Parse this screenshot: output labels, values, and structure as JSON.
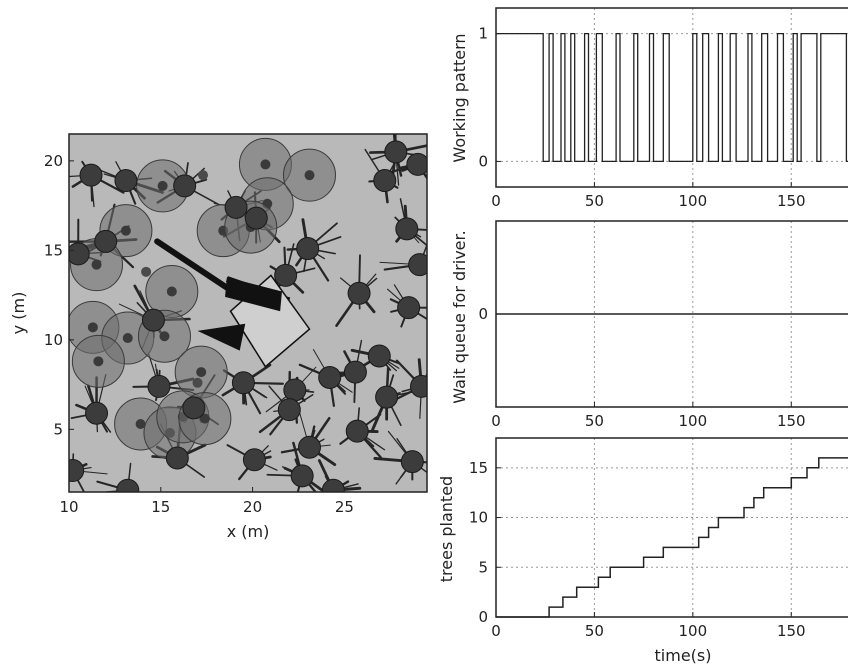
{
  "chart_data": [
    {
      "type": "scatter",
      "xlabel": "x (m)",
      "ylabel": "y (m)",
      "xlim": [
        10,
        29.5
      ],
      "ylim": [
        1.5,
        21.5
      ],
      "x_ticks": [
        "10",
        "15",
        "20",
        "25"
      ],
      "y_ticks": [
        "5",
        "10",
        "15",
        "20"
      ],
      "colors": {
        "background": "#b9b9b9",
        "tree": "#3c3c3c",
        "zone": "#6e6e6e",
        "seedling": "#4a4a4a",
        "machine": "#cfcfcf"
      },
      "trees": [
        [
          11.2,
          19.2
        ],
        [
          13.1,
          18.9
        ],
        [
          16.3,
          18.6
        ],
        [
          27.8,
          20.5
        ],
        [
          29,
          19.8
        ],
        [
          27.2,
          18.9
        ],
        [
          28.4,
          16.2
        ],
        [
          12,
          15.5
        ],
        [
          10.5,
          14.8
        ],
        [
          19.1,
          17.4
        ],
        [
          20.2,
          16.8
        ],
        [
          23,
          15.1
        ],
        [
          21.8,
          13.6
        ],
        [
          25.8,
          12.6
        ],
        [
          28.5,
          11.8
        ],
        [
          14.6,
          11.1
        ],
        [
          26.9,
          9.1
        ],
        [
          25.6,
          8.2
        ],
        [
          14.9,
          7.4
        ],
        [
          19.5,
          7.6
        ],
        [
          22.3,
          7.2
        ],
        [
          24.2,
          7.9
        ],
        [
          27.3,
          6.8
        ],
        [
          11.5,
          5.9
        ],
        [
          16.8,
          6.2
        ],
        [
          22,
          6.1
        ],
        [
          23.1,
          4
        ],
        [
          25.7,
          4.9
        ],
        [
          20.1,
          3.3
        ],
        [
          15.9,
          3.4
        ],
        [
          22.7,
          2.4
        ],
        [
          10.2,
          2.7
        ],
        [
          13.2,
          1.6
        ],
        [
          24.4,
          1.6
        ],
        [
          28.7,
          3.2
        ],
        [
          29.2,
          7.4
        ],
        [
          29.1,
          14.2
        ]
      ],
      "zones": [
        [
          20.7,
          19.8
        ],
        [
          23.1,
          19.2
        ],
        [
          15.1,
          18.6
        ],
        [
          20.8,
          17.6
        ],
        [
          13.1,
          16.1
        ],
        [
          18.4,
          16.1
        ],
        [
          19.9,
          16.3
        ],
        [
          11.5,
          14.2
        ],
        [
          15.6,
          12.7
        ],
        [
          11.3,
          10.7
        ],
        [
          13.2,
          10.1
        ],
        [
          15.2,
          10.2
        ],
        [
          11.6,
          8.8
        ],
        [
          17.2,
          8.2
        ],
        [
          13.9,
          5.3
        ],
        [
          15.5,
          4.8
        ],
        [
          16.2,
          5.7
        ],
        [
          17.4,
          5.6
        ]
      ],
      "seedlings": [
        [
          17.3,
          19.2
        ],
        [
          14.2,
          13.8
        ],
        [
          17,
          7.6
        ]
      ]
    },
    {
      "type": "line",
      "ylabel": "Working pattern",
      "xlim": [
        0,
        190
      ],
      "ylim": [
        -0.2,
        1.2
      ],
      "x_ticks": [
        "0",
        "50",
        "100",
        "150"
      ],
      "y_ticks": [
        "0",
        "1"
      ],
      "series": [
        {
          "x": [
            0,
            24,
            24,
            27,
            27,
            29,
            29,
            33,
            33,
            35,
            35,
            38,
            38,
            40,
            40,
            45,
            45,
            47,
            47,
            51,
            51,
            54,
            54,
            61,
            61,
            63,
            63,
            70,
            70,
            72,
            72,
            78,
            78,
            80,
            80,
            85,
            85,
            88,
            88,
            100,
            100,
            102,
            102,
            105,
            105,
            108,
            108,
            113,
            113,
            115,
            115,
            119,
            119,
            122,
            122,
            128,
            128,
            130,
            130,
            135,
            135,
            138,
            138,
            143,
            143,
            146,
            146,
            151,
            151,
            153,
            153,
            155,
            155,
            163,
            163,
            165,
            165,
            178,
            178,
            180,
            180,
            190
          ],
          "y": [
            1,
            1,
            0,
            0,
            1,
            1,
            0,
            0,
            1,
            1,
            0,
            0,
            1,
            1,
            0,
            0,
            1,
            1,
            0,
            0,
            1,
            1,
            0,
            0,
            1,
            1,
            0,
            0,
            1,
            1,
            0,
            0,
            1,
            1,
            0,
            0,
            1,
            1,
            0,
            0,
            1,
            1,
            0,
            0,
            1,
            1,
            0,
            0,
            1,
            1,
            0,
            0,
            1,
            1,
            0,
            0,
            1,
            1,
            0,
            0,
            1,
            1,
            0,
            0,
            1,
            1,
            0,
            0,
            1,
            1,
            0,
            0,
            1,
            1,
            0,
            0,
            1,
            1,
            0,
            0,
            1,
            1
          ]
        }
      ]
    },
    {
      "type": "line",
      "ylabel": "Wait queue for driver.",
      "xlim": [
        0,
        190
      ],
      "ylim": [
        -1,
        1
      ],
      "x_ticks": [
        "0",
        "50",
        "100",
        "150"
      ],
      "y_ticks": [
        "0"
      ],
      "series": [
        {
          "x": [
            0,
            190
          ],
          "y": [
            0,
            0
          ]
        }
      ]
    },
    {
      "type": "line",
      "xlabel": "time(s)",
      "ylabel": "trees planted",
      "xlim": [
        0,
        190
      ],
      "ylim": [
        0,
        18
      ],
      "x_ticks": [
        "0",
        "50",
        "100",
        "150"
      ],
      "y_ticks": [
        "0",
        "5",
        "10",
        "15"
      ],
      "series": [
        {
          "step_x": [
            27,
            34,
            41,
            47,
            52,
            58,
            66,
            75,
            80,
            85,
            103,
            108,
            113,
            120,
            126,
            131,
            136,
            143,
            150,
            158,
            164,
            171,
            180
          ],
          "step_y": [
            1,
            2,
            3,
            3,
            4,
            5,
            5,
            6,
            6,
            7,
            8,
            9,
            10,
            10,
            11,
            12,
            13,
            13,
            14,
            15,
            16,
            16,
            17
          ]
        }
      ]
    }
  ]
}
